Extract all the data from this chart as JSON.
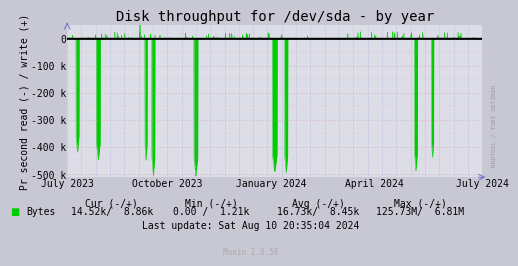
{
  "title": "Disk throughput for /dev/sda - by year",
  "ylabel": "Pr second read (-) / write (+)",
  "background_color": "#c8c8d4",
  "plot_background": "#dddde8",
  "grid_color_v": "#8888cc",
  "grid_color_h": "#cc8888",
  "line_color": "#00cc00",
  "zero_line_color": "#000000",
  "ylim": [
    -524288,
    52428.8
  ],
  "ytick_vals": [
    0,
    -102400,
    -204800,
    -307200,
    -409600,
    -512000
  ],
  "ytick_labels": [
    "0",
    "-100 k",
    "-200 k",
    "-300 k",
    "-400 k",
    "-500 k"
  ],
  "xtick_labels": [
    "July 2023",
    "October 2023",
    "January 2024",
    "April 2024",
    "July 2024"
  ],
  "xtick_pos": [
    0.0,
    0.242,
    0.493,
    0.741,
    1.0
  ],
  "legend_label": "Bytes",
  "cur_label": "Cur (-/+)",
  "min_label": "Min (-/+)",
  "avg_label": "Avg (-/+)",
  "max_label": "Max (-/+)",
  "cur_val": "14.52k/  8.86k",
  "min_val": "0.00 /  1.21k",
  "avg_val": "16.73k/  8.45k",
  "max_val": "125.73M/  6.81M",
  "last_update": "Last update: Sat Aug 10 20:35:04 2024",
  "munin_version": "Munin 2.0.56",
  "rrdtool_label": "RRDTOOL / TOBI OETIKER",
  "title_fontsize": 10,
  "axis_fontsize": 7,
  "legend_fontsize": 7,
  "arrow_color": "#7777cc"
}
